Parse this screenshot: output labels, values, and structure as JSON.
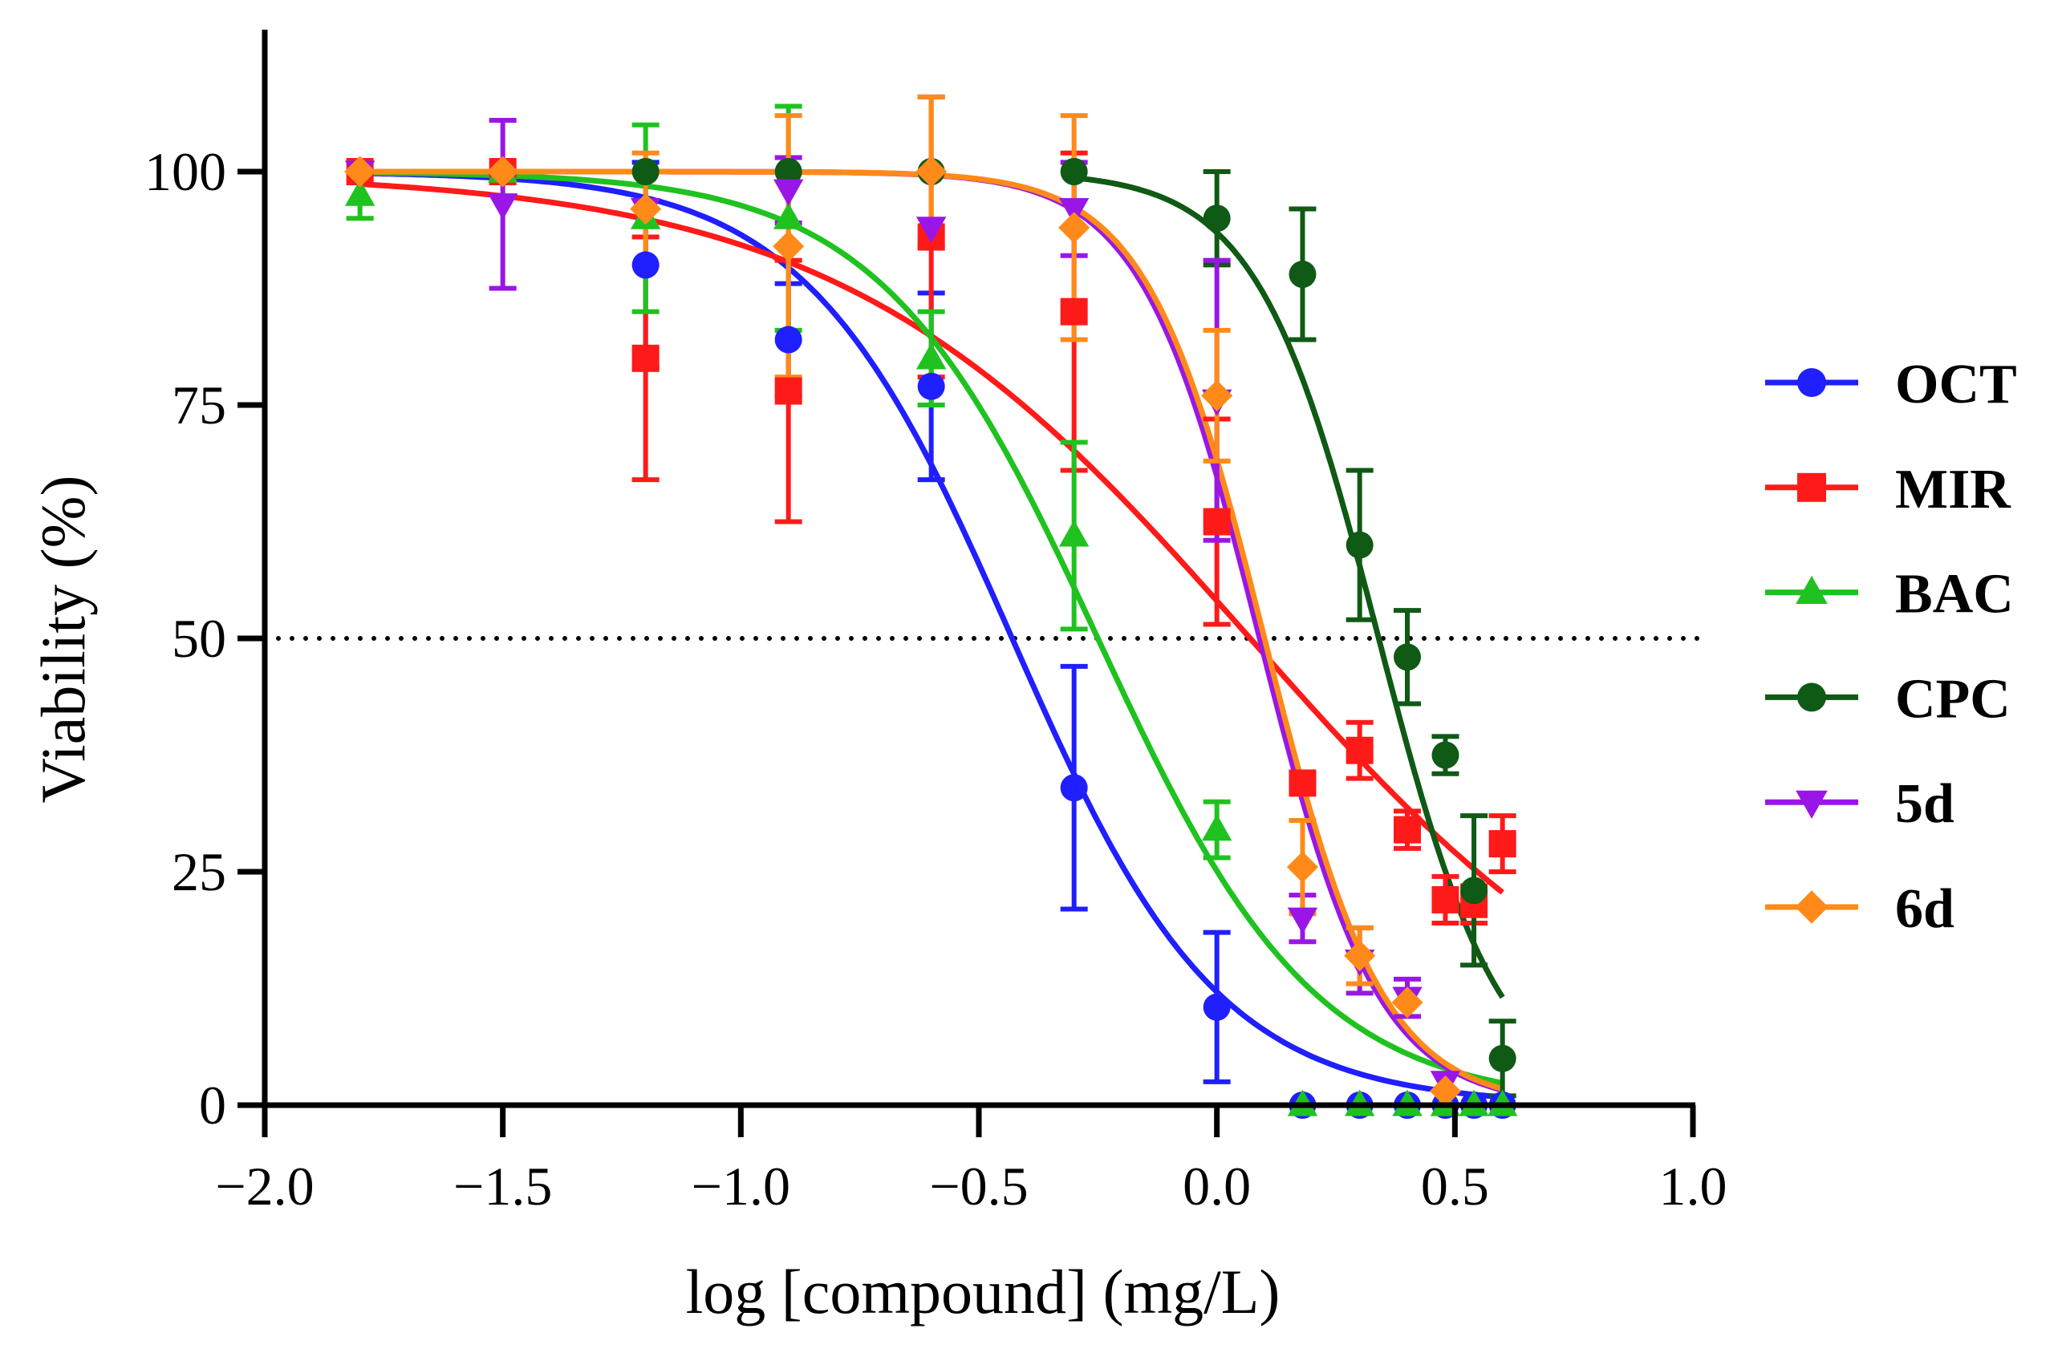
{
  "chart_data": {
    "type": "scatter",
    "title": "",
    "xlabel": "log [compound] (mg/L)",
    "ylabel": "Viability  (%)",
    "xlim": [
      -2.0,
      1.0
    ],
    "ylim": [
      0,
      115
    ],
    "x_ticks": [
      -2.0,
      -1.5,
      -1.0,
      -0.5,
      0.0,
      0.5,
      1.0
    ],
    "x_tick_labels": [
      "−2.0",
      "−1.5",
      "−1.0",
      "−0.5",
      "0.0",
      "0.5",
      "1.0"
    ],
    "y_ticks": [
      0,
      25,
      50,
      75,
      100
    ],
    "y_tick_labels": [
      "0",
      "25",
      "50",
      "75",
      "100"
    ],
    "reference_line": {
      "y": 50,
      "style": "dotted"
    },
    "legend_position": "right",
    "series": [
      {
        "name": "OCT",
        "color": "#1f1fff",
        "marker": "circle",
        "fit": {
          "top": 100,
          "bottom": 0,
          "log_ic50": -0.43,
          "hill": 2.0,
          "x_range": [
            -1.8,
            0.6
          ]
        },
        "points": [
          {
            "x": -1.8,
            "y": 100,
            "err": 0
          },
          {
            "x": -1.5,
            "y": 100,
            "err": 0
          },
          {
            "x": -1.2,
            "y": 90,
            "err": 11
          },
          {
            "x": -0.9,
            "y": 82,
            "err": 6
          },
          {
            "x": -0.6,
            "y": 77,
            "err": 10
          },
          {
            "x": -0.3,
            "y": 34,
            "err": 13
          },
          {
            "x": 0.0,
            "y": 10.5,
            "err": 8
          },
          {
            "x": 0.18,
            "y": 0,
            "err": 0
          },
          {
            "x": 0.3,
            "y": 0,
            "err": 0
          },
          {
            "x": 0.4,
            "y": 0,
            "err": 0
          },
          {
            "x": 0.48,
            "y": 0,
            "err": 0
          },
          {
            "x": 0.54,
            "y": 0,
            "err": 0
          },
          {
            "x": 0.6,
            "y": 0,
            "err": 0
          }
        ]
      },
      {
        "name": "MIR",
        "color": "#ff1a1a",
        "marker": "square",
        "fit": {
          "top": 100,
          "bottom": 0,
          "log_ic50": 0.07,
          "hill": 1.0,
          "x_range": [
            -1.8,
            0.6
          ]
        },
        "points": [
          {
            "x": -1.8,
            "y": 100,
            "err": 0
          },
          {
            "x": -1.5,
            "y": 100,
            "err": 0
          },
          {
            "x": -1.2,
            "y": 80,
            "err": 13
          },
          {
            "x": -0.9,
            "y": 76.5,
            "err": 14
          },
          {
            "x": -0.6,
            "y": 93,
            "err": 15
          },
          {
            "x": -0.3,
            "y": 85,
            "err": 17
          },
          {
            "x": 0.0,
            "y": 62.5,
            "err": 11
          },
          {
            "x": 0.18,
            "y": 34.5,
            "err": 0
          },
          {
            "x": 0.3,
            "y": 38,
            "err": 3
          },
          {
            "x": 0.4,
            "y": 29.5,
            "err": 2
          },
          {
            "x": 0.48,
            "y": 22,
            "err": 2.5
          },
          {
            "x": 0.54,
            "y": 21.5,
            "err": 2
          },
          {
            "x": 0.6,
            "y": 28,
            "err": 3
          }
        ]
      },
      {
        "name": "BAC",
        "color": "#1fc21f",
        "marker": "triangle-up",
        "fit": {
          "top": 100,
          "bottom": 0,
          "log_ic50": -0.25,
          "hill": 1.9,
          "x_range": [
            -1.8,
            0.6
          ]
        },
        "points": [
          {
            "x": -1.8,
            "y": 97.5,
            "err": 2.5
          },
          {
            "x": -1.5,
            "y": 100,
            "err": 0
          },
          {
            "x": -1.2,
            "y": 95,
            "err": 10
          },
          {
            "x": -0.9,
            "y": 95,
            "err": 12
          },
          {
            "x": -0.6,
            "y": 80,
            "err": 5
          },
          {
            "x": -0.3,
            "y": 61,
            "err": 10
          },
          {
            "x": 0.0,
            "y": 29.5,
            "err": 3
          },
          {
            "x": 0.18,
            "y": 0,
            "err": 0
          },
          {
            "x": 0.3,
            "y": 0,
            "err": 0
          },
          {
            "x": 0.4,
            "y": 0,
            "err": 0
          },
          {
            "x": 0.48,
            "y": 0,
            "err": 0
          },
          {
            "x": 0.54,
            "y": 0,
            "err": 0
          },
          {
            "x": 0.6,
            "y": 0,
            "err": 0
          }
        ]
      },
      {
        "name": "CPC",
        "color": "#0f5a14",
        "marker": "circle",
        "fit": {
          "top": 100,
          "bottom": 0,
          "log_ic50": 0.34,
          "hill": 3.4,
          "x_range": [
            -0.3,
            0.6
          ]
        },
        "points": [
          {
            "x": -1.2,
            "y": 100,
            "err": 0
          },
          {
            "x": -0.9,
            "y": 100,
            "err": 0
          },
          {
            "x": -0.6,
            "y": 100,
            "err": 0
          },
          {
            "x": -0.3,
            "y": 100,
            "err": 0
          },
          {
            "x": 0.0,
            "y": 95,
            "err": 5
          },
          {
            "x": 0.18,
            "y": 89,
            "err": 7
          },
          {
            "x": 0.3,
            "y": 60,
            "err": 8
          },
          {
            "x": 0.4,
            "y": 48,
            "err": 5
          },
          {
            "x": 0.48,
            "y": 37.5,
            "err": 2
          },
          {
            "x": 0.54,
            "y": 23,
            "err": 8
          },
          {
            "x": 0.6,
            "y": 5,
            "err": 4
          }
        ]
      },
      {
        "name": "5d",
        "color": "#9a16e6",
        "marker": "triangle-down",
        "fit": {
          "top": 100,
          "bottom": 0,
          "log_ic50": 0.09,
          "hill": 3.5,
          "x_range": [
            -1.8,
            0.6
          ]
        },
        "points": [
          {
            "x": -1.8,
            "y": 100,
            "err": 0
          },
          {
            "x": -1.5,
            "y": 96.5,
            "err": 9
          },
          {
            "x": -1.2,
            "y": 96,
            "err": 0
          },
          {
            "x": -0.9,
            "y": 98,
            "err": 3.5
          },
          {
            "x": -0.6,
            "y": 94,
            "err": 0
          },
          {
            "x": -0.3,
            "y": 96,
            "err": 5
          },
          {
            "x": 0.0,
            "y": 75.5,
            "err": 15
          },
          {
            "x": 0.18,
            "y": 20,
            "err": 2.5
          },
          {
            "x": 0.3,
            "y": 15.5,
            "err": 3.5
          },
          {
            "x": 0.4,
            "y": 11.5,
            "err": 2
          },
          {
            "x": 0.48,
            "y": 2.5,
            "err": 0
          }
        ]
      },
      {
        "name": "6d",
        "color": "#ff8a1a",
        "marker": "diamond",
        "fit": {
          "top": 100,
          "bottom": 0,
          "log_ic50": 0.1,
          "hill": 3.5,
          "x_range": [
            -1.8,
            0.6
          ]
        },
        "points": [
          {
            "x": -1.8,
            "y": 100,
            "err": 0
          },
          {
            "x": -1.5,
            "y": 100,
            "err": 0
          },
          {
            "x": -1.2,
            "y": 96,
            "err": 6
          },
          {
            "x": -0.9,
            "y": 92,
            "err": 14
          },
          {
            "x": -0.6,
            "y": 100,
            "err": 8
          },
          {
            "x": -0.3,
            "y": 94,
            "err": 12
          },
          {
            "x": 0.0,
            "y": 76,
            "err": 7
          },
          {
            "x": 0.18,
            "y": 25.5,
            "err": 5
          },
          {
            "x": 0.3,
            "y": 16,
            "err": 3
          },
          {
            "x": 0.4,
            "y": 11,
            "err": 0
          },
          {
            "x": 0.48,
            "y": 1.5,
            "err": 0
          }
        ]
      }
    ]
  }
}
